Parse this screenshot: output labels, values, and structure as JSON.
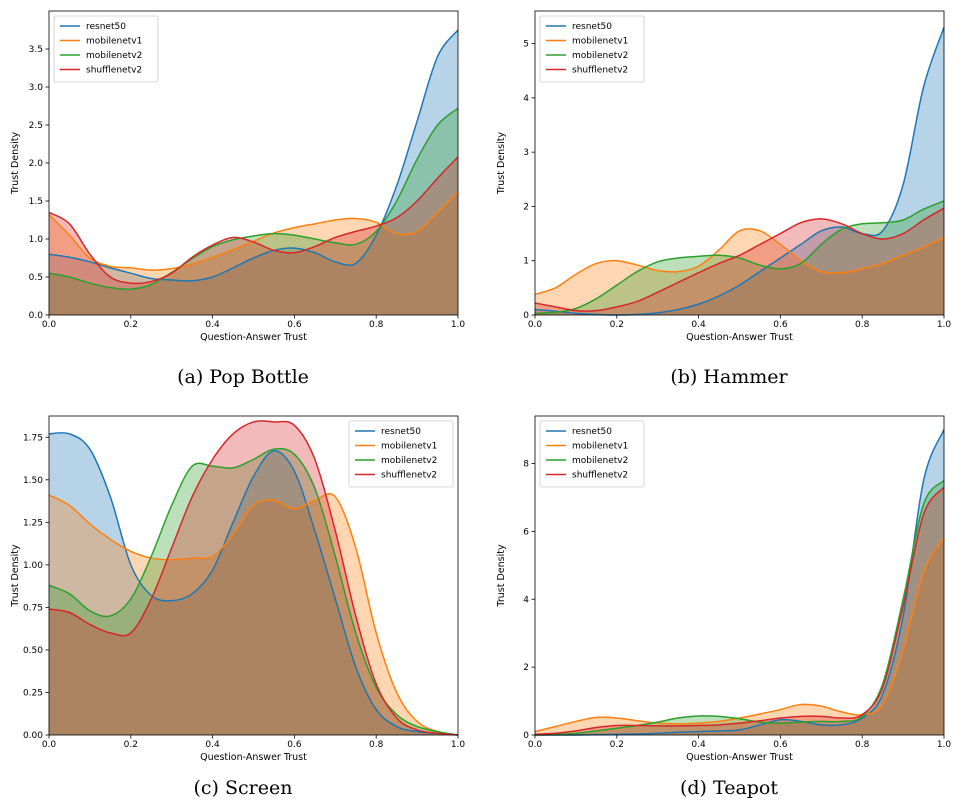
{
  "colors": {
    "resnet50": "#1f77b4",
    "mobilenetv1": "#ff7f0e",
    "mobilenetv2": "#2ca02c",
    "shufflenetv2": "#d62728"
  },
  "chart_data": [
    {
      "type": "area",
      "caption": "(a) Pop Bottle",
      "xlabel": "Question-Answer Trust",
      "ylabel": "Trust Density",
      "xlim": [
        0,
        1
      ],
      "ylim": [
        0,
        4.0
      ],
      "xticks": [
        0.0,
        0.2,
        0.4,
        0.6,
        0.8,
        1.0
      ],
      "xtick_labels": [
        "0.0",
        "0.2",
        "0.4",
        "0.6",
        "0.8",
        "1.0"
      ],
      "yticks": [
        0,
        0.5,
        1.0,
        1.5,
        2.0,
        2.5,
        3.0,
        3.5
      ],
      "ytick_labels": [
        "0.0",
        "0.5",
        "1.0",
        "1.5",
        "2.0",
        "2.5",
        "3.0",
        "3.5"
      ],
      "legend": "top-left",
      "x": [
        0,
        0.05,
        0.1,
        0.15,
        0.2,
        0.25,
        0.3,
        0.35,
        0.4,
        0.45,
        0.5,
        0.55,
        0.6,
        0.65,
        0.7,
        0.75,
        0.8,
        0.85,
        0.9,
        0.95,
        1.0
      ],
      "series": [
        {
          "name": "resnet50",
          "values": [
            0.8,
            0.76,
            0.7,
            0.62,
            0.55,
            0.48,
            0.46,
            0.45,
            0.5,
            0.62,
            0.75,
            0.85,
            0.88,
            0.82,
            0.7,
            0.68,
            1.05,
            1.7,
            2.55,
            3.4,
            3.75
          ]
        },
        {
          "name": "mobilenetv1",
          "values": [
            1.32,
            1.05,
            0.75,
            0.64,
            0.62,
            0.59,
            0.61,
            0.67,
            0.76,
            0.86,
            0.97,
            1.08,
            1.15,
            1.2,
            1.25,
            1.27,
            1.22,
            1.07,
            1.1,
            1.35,
            1.62
          ]
        },
        {
          "name": "mobilenetv2",
          "values": [
            0.55,
            0.5,
            0.42,
            0.36,
            0.34,
            0.4,
            0.56,
            0.74,
            0.9,
            0.99,
            1.04,
            1.07,
            1.05,
            1.0,
            0.95,
            0.93,
            1.1,
            1.5,
            2.05,
            2.5,
            2.72
          ]
        },
        {
          "name": "shufflenetv2",
          "values": [
            1.35,
            1.2,
            0.8,
            0.5,
            0.42,
            0.44,
            0.55,
            0.76,
            0.92,
            1.02,
            0.96,
            0.85,
            0.82,
            0.9,
            1.02,
            1.1,
            1.17,
            1.28,
            1.5,
            1.8,
            2.08
          ]
        }
      ]
    },
    {
      "type": "area",
      "caption": "(b) Hammer",
      "xlabel": "Question-Answer Trust",
      "ylabel": "Trust Density",
      "xlim": [
        0,
        1
      ],
      "ylim": [
        0,
        5.6
      ],
      "xticks": [
        0.0,
        0.2,
        0.4,
        0.6,
        0.8,
        1.0
      ],
      "xtick_labels": [
        "0.0",
        "0.2",
        "0.4",
        "0.6",
        "0.8",
        "1.0"
      ],
      "yticks": [
        0,
        1,
        2,
        3,
        4,
        5
      ],
      "ytick_labels": [
        "0",
        "1",
        "2",
        "3",
        "4",
        "5"
      ],
      "legend": "top-left",
      "x": [
        0,
        0.05,
        0.1,
        0.15,
        0.2,
        0.25,
        0.3,
        0.35,
        0.4,
        0.45,
        0.5,
        0.55,
        0.6,
        0.65,
        0.7,
        0.75,
        0.8,
        0.85,
        0.9,
        0.95,
        1.0
      ],
      "series": [
        {
          "name": "resnet50",
          "values": [
            0.1,
            0.07,
            0.03,
            0.01,
            0.0,
            0.01,
            0.04,
            0.1,
            0.2,
            0.35,
            0.55,
            0.8,
            1.05,
            1.3,
            1.55,
            1.62,
            1.5,
            1.55,
            2.4,
            4.2,
            5.3
          ]
        },
        {
          "name": "mobilenetv1",
          "values": [
            0.38,
            0.5,
            0.75,
            0.95,
            1.0,
            0.92,
            0.82,
            0.8,
            0.9,
            1.2,
            1.55,
            1.55,
            1.3,
            1.0,
            0.8,
            0.78,
            0.85,
            0.95,
            1.1,
            1.25,
            1.42
          ]
        },
        {
          "name": "mobilenetv2",
          "values": [
            0.03,
            0.05,
            0.12,
            0.3,
            0.55,
            0.8,
            0.98,
            1.05,
            1.08,
            1.1,
            1.05,
            0.92,
            0.85,
            0.95,
            1.3,
            1.58,
            1.68,
            1.7,
            1.75,
            1.95,
            2.1
          ]
        },
        {
          "name": "shufflenetv2",
          "values": [
            0.22,
            0.15,
            0.08,
            0.08,
            0.15,
            0.25,
            0.42,
            0.6,
            0.78,
            0.95,
            1.1,
            1.3,
            1.5,
            1.7,
            1.77,
            1.68,
            1.5,
            1.4,
            1.5,
            1.75,
            1.97
          ]
        }
      ]
    },
    {
      "type": "area",
      "caption": "(c) Screen",
      "xlabel": "Question-Answer Trust",
      "ylabel": "Trust Density",
      "xlim": [
        0,
        1
      ],
      "ylim": [
        0,
        1.875
      ],
      "xticks": [
        0.0,
        0.2,
        0.4,
        0.6,
        0.8,
        1.0
      ],
      "xtick_labels": [
        "0.0",
        "0.2",
        "0.4",
        "0.6",
        "0.8",
        "1.0"
      ],
      "yticks": [
        0,
        0.25,
        0.5,
        0.75,
        1.0,
        1.25,
        1.5,
        1.75
      ],
      "ytick_labels": [
        "0.00",
        "0.25",
        "0.50",
        "0.75",
        "1.00",
        "1.25",
        "1.50",
        "1.75"
      ],
      "legend": "top-right",
      "x": [
        0,
        0.05,
        0.1,
        0.15,
        0.2,
        0.25,
        0.3,
        0.35,
        0.4,
        0.45,
        0.5,
        0.55,
        0.6,
        0.65,
        0.7,
        0.75,
        0.8,
        0.85,
        0.9,
        0.95,
        1.0
      ],
      "series": [
        {
          "name": "resnet50",
          "values": [
            1.77,
            1.77,
            1.68,
            1.4,
            1.0,
            0.82,
            0.79,
            0.83,
            0.97,
            1.25,
            1.52,
            1.67,
            1.55,
            1.2,
            0.8,
            0.4,
            0.15,
            0.05,
            0.02,
            0.01,
            0.0
          ]
        },
        {
          "name": "mobilenetv1",
          "values": [
            1.41,
            1.35,
            1.24,
            1.15,
            1.08,
            1.04,
            1.03,
            1.04,
            1.05,
            1.18,
            1.35,
            1.38,
            1.33,
            1.38,
            1.4,
            1.1,
            0.6,
            0.25,
            0.08,
            0.02,
            0.0
          ]
        },
        {
          "name": "mobilenetv2",
          "values": [
            0.88,
            0.83,
            0.73,
            0.7,
            0.8,
            1.05,
            1.35,
            1.58,
            1.58,
            1.57,
            1.62,
            1.68,
            1.65,
            1.45,
            1.05,
            0.6,
            0.28,
            0.12,
            0.05,
            0.02,
            0.0
          ]
        },
        {
          "name": "shufflenetv2",
          "values": [
            0.74,
            0.72,
            0.65,
            0.6,
            0.6,
            0.8,
            1.1,
            1.4,
            1.62,
            1.77,
            1.84,
            1.84,
            1.82,
            1.62,
            1.2,
            0.7,
            0.3,
            0.1,
            0.03,
            0.01,
            0.0
          ]
        }
      ]
    },
    {
      "type": "area",
      "caption": "(d) Teapot",
      "xlabel": "Question-Answer Trust",
      "ylabel": "Trust Density",
      "xlim": [
        0,
        1
      ],
      "ylim": [
        0,
        9.4
      ],
      "xticks": [
        0.0,
        0.2,
        0.4,
        0.6,
        0.8,
        1.0
      ],
      "xtick_labels": [
        "0.0",
        "0.2",
        "0.4",
        "0.6",
        "0.8",
        "1.0"
      ],
      "yticks": [
        0,
        2,
        4,
        6,
        8
      ],
      "ytick_labels": [
        "0",
        "2",
        "4",
        "6",
        "8"
      ],
      "legend": "top-left",
      "x": [
        0,
        0.05,
        0.1,
        0.15,
        0.2,
        0.25,
        0.3,
        0.35,
        0.4,
        0.45,
        0.5,
        0.55,
        0.6,
        0.65,
        0.7,
        0.75,
        0.8,
        0.85,
        0.9,
        0.95,
        1.0
      ],
      "series": [
        {
          "name": "resnet50",
          "values": [
            0.0,
            0.0,
            0.0,
            0.01,
            0.02,
            0.03,
            0.05,
            0.08,
            0.1,
            0.12,
            0.15,
            0.3,
            0.45,
            0.4,
            0.3,
            0.3,
            0.5,
            1.2,
            3.5,
            7.5,
            9.0
          ]
        },
        {
          "name": "mobilenetv1",
          "values": [
            0.1,
            0.25,
            0.4,
            0.52,
            0.5,
            0.42,
            0.35,
            0.33,
            0.35,
            0.4,
            0.5,
            0.62,
            0.75,
            0.9,
            0.85,
            0.68,
            0.6,
            0.9,
            2.5,
            4.8,
            5.8
          ]
        },
        {
          "name": "mobilenetv2",
          "values": [
            0.0,
            0.01,
            0.05,
            0.12,
            0.2,
            0.28,
            0.38,
            0.5,
            0.56,
            0.55,
            0.48,
            0.38,
            0.35,
            0.38,
            0.4,
            0.4,
            0.55,
            1.5,
            4.0,
            6.8,
            7.5
          ]
        },
        {
          "name": "shufflenetv2",
          "values": [
            0.02,
            0.05,
            0.12,
            0.22,
            0.28,
            0.28,
            0.27,
            0.27,
            0.28,
            0.3,
            0.35,
            0.42,
            0.5,
            0.55,
            0.55,
            0.5,
            0.6,
            1.4,
            3.8,
            6.5,
            7.3
          ]
        }
      ]
    }
  ]
}
